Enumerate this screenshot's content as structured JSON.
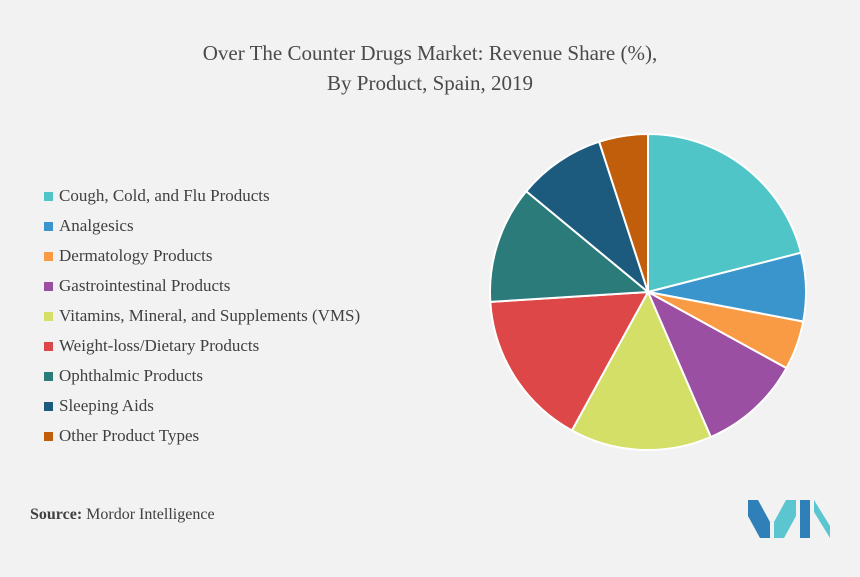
{
  "chart_data": {
    "type": "pie",
    "title_line1": "Over The Counter Drugs Market: Revenue Share (%),",
    "title_line2": "By Product, Spain, 2019",
    "legend_position": "left",
    "categories": [
      "Cough, Cold, and Flu Products",
      "Analgesics",
      "Dermatology Products",
      "Gastrointestinal Products",
      "Vitamins, Mineral, and Supplements (VMS)",
      "Weight-loss/Dietary Products",
      "Ophthalmic Products",
      "Sleeping Aids",
      "Other Product Types"
    ],
    "values": [
      21,
      7,
      5,
      10.5,
      14.5,
      16,
      12,
      9,
      5
    ],
    "colors": [
      "#4fc5c8",
      "#3a95cc",
      "#f99b45",
      "#9b4fa3",
      "#d3df66",
      "#de4747",
      "#2b7b7a",
      "#1c5a7e",
      "#c15e0b"
    ]
  },
  "source": {
    "label": "Source:",
    "text": "Mordor Intelligence"
  },
  "logo": {
    "colors": [
      "#2f7fb8",
      "#5cc6d0"
    ]
  }
}
